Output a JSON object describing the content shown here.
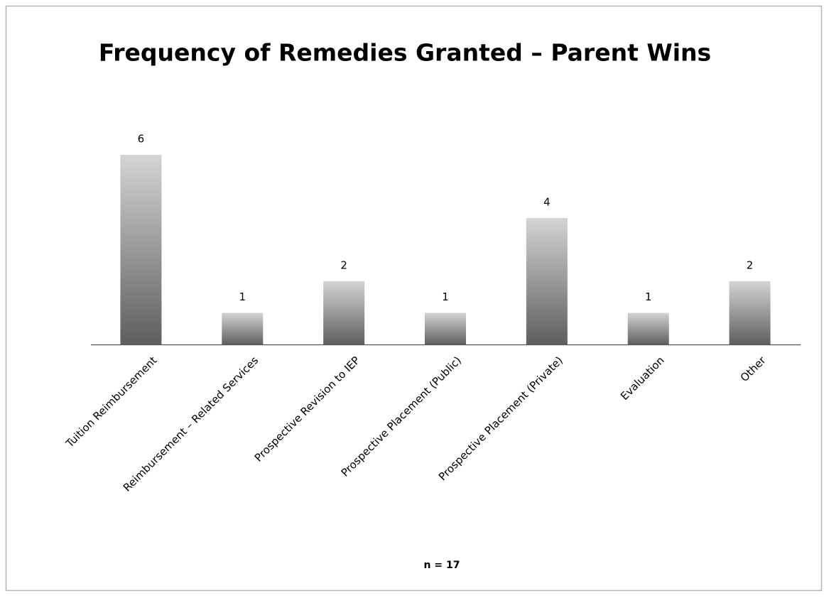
{
  "chart_data": {
    "type": "bar",
    "title": "Frequency of Remedies Granted – Parent Wins",
    "categories": [
      "Tuition Reimbursement",
      "Reimbursement – Related Services",
      "Prospective Revision to IEP",
      "Prospective Placement (Public)",
      "Prospective Placement (Private)",
      "Evaluation",
      "Other"
    ],
    "values": [
      6,
      1,
      2,
      1,
      4,
      1,
      2
    ],
    "note": "n = 17",
    "color": [
      "#d4d4d4",
      "#5e5e5e"
    ]
  }
}
